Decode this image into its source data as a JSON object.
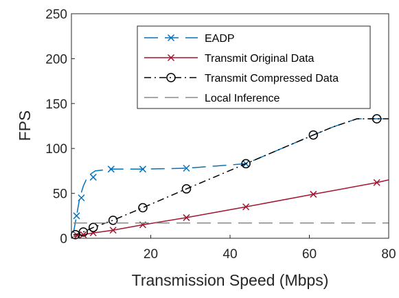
{
  "chart_data": {
    "type": "line",
    "title": "",
    "xlabel": "Transmission Speed (Mbps)",
    "ylabel": "FPS",
    "xlim": [
      0,
      80
    ],
    "ylim": [
      0,
      250
    ],
    "xticks": [
      "20",
      "40",
      "60",
      "80"
    ],
    "yticks": [
      "0",
      "50",
      "100",
      "150",
      "200",
      "250"
    ],
    "grid": false,
    "legend_position": "top-right",
    "series": [
      {
        "name": "EADP",
        "color": "#0072BD",
        "line_style": "long-dash",
        "marker": "x",
        "x": [
          0.5,
          1.3,
          2.1,
          3.0,
          4.0,
          5.0,
          6.0,
          8.0,
          10.0,
          14.0,
          18.0,
          29.0,
          44.0,
          61.0,
          66.0,
          72.0,
          77.0,
          80.0
        ],
        "y": [
          6,
          25,
          45,
          58,
          68,
          72,
          75,
          76,
          77,
          77,
          77,
          78,
          83,
          115,
          124,
          133,
          133,
          133
        ],
        "marker_x": [
          1.3,
          2.5,
          5.5,
          10.0,
          18.0,
          29.0,
          44.0
        ],
        "marker_y": [
          25,
          45,
          68,
          77,
          77,
          78,
          83
        ]
      },
      {
        "name": "Transmit Original Data",
        "color": "#A2142F",
        "line_style": "solid",
        "marker": "x",
        "x": [
          0.5,
          1.5,
          3.0,
          5.5,
          10.5,
          18.0,
          29.0,
          44.0,
          61.0,
          77.0,
          80.0
        ],
        "y": [
          2,
          3,
          4,
          6,
          9,
          15,
          23,
          35,
          49,
          62,
          65
        ],
        "marker_x": [
          1.5,
          3.0,
          5.5,
          10.5,
          18.0,
          29.0,
          44.0,
          61.0,
          77.0
        ],
        "marker_y": [
          3,
          4,
          6,
          9,
          15,
          23,
          35,
          49,
          62
        ]
      },
      {
        "name": "Transmit Compressed Data",
        "color": "#000000",
        "line_style": "dash-dot",
        "marker": "circle",
        "x": [
          0.5,
          1.0,
          3.0,
          5.5,
          10.5,
          18.0,
          29.0,
          44.0,
          61.0,
          66.0,
          72.0,
          77.0,
          80.0
        ],
        "y": [
          4,
          4,
          7,
          12,
          20,
          34,
          55,
          83,
          115,
          124,
          133,
          133,
          133
        ],
        "marker_x": [
          1.0,
          3.0,
          5.5,
          10.5,
          18.0,
          29.0,
          44.0,
          61.0,
          77.0
        ],
        "marker_y": [
          4,
          7,
          12,
          20,
          34,
          55,
          83,
          115,
          133
        ]
      },
      {
        "name": "Local Inference",
        "color": "#888888",
        "line_style": "long-dash",
        "marker": "none",
        "x": [
          0.5,
          80.0
        ],
        "y": [
          17,
          17
        ],
        "marker_x": [],
        "marker_y": []
      }
    ]
  }
}
